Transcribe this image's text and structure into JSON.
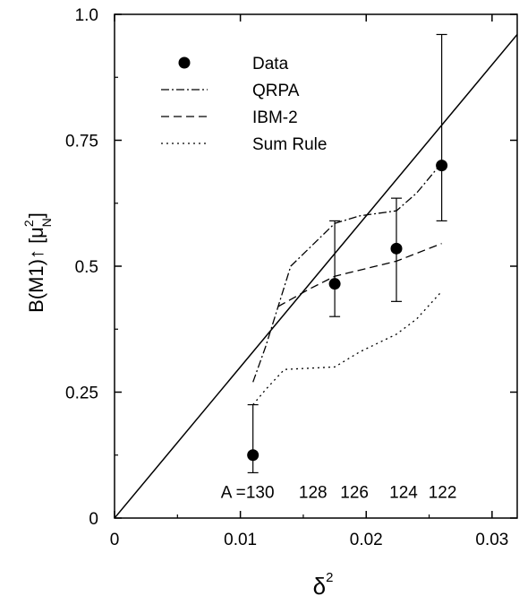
{
  "chart_data": {
    "type": "scatter",
    "xlabel": "δ",
    "xlabel_superscript": "2",
    "ylabel": "B(M1)↑ [μN²]",
    "ylabel_parts": {
      "main": "B(M1)",
      "arrow": "↑",
      "bracket_open": "[",
      "mu": "μ",
      "sup": "2",
      "sub": "N",
      "bracket_close": "]"
    },
    "xlim": [
      0,
      0.032
    ],
    "ylim": [
      0,
      1.0
    ],
    "xticks": [
      {
        "value": 0,
        "label": "0"
      },
      {
        "value": 0.01,
        "label": "0.01"
      },
      {
        "value": 0.02,
        "label": "0.02"
      },
      {
        "value": 0.03,
        "label": "0.03"
      }
    ],
    "yticks": [
      {
        "value": 0,
        "label": "0"
      },
      {
        "value": 0.25,
        "label": "0.25"
      },
      {
        "value": 0.5,
        "label": "0.5"
      },
      {
        "value": 0.75,
        "label": "0.75"
      },
      {
        "value": 1.0,
        "label": "1.0"
      }
    ],
    "legend_position": "top-left",
    "series": [
      {
        "name": "Data",
        "style": "markers",
        "points": [
          {
            "x": 0.011,
            "y": 0.125,
            "err_low": 0.09,
            "err_high": 0.225
          },
          {
            "x": 0.0175,
            "y": 0.465,
            "err_low": 0.4,
            "err_high": 0.59
          },
          {
            "x": 0.0224,
            "y": 0.535,
            "err_low": 0.43,
            "err_high": 0.635
          },
          {
            "x": 0.026,
            "y": 0.7,
            "err_low": 0.59,
            "err_high": 0.96
          }
        ]
      },
      {
        "name": "QRPA",
        "style": "dashdot",
        "points": [
          {
            "x": 0.011,
            "y": 0.27
          },
          {
            "x": 0.012,
            "y": 0.34
          },
          {
            "x": 0.014,
            "y": 0.5
          },
          {
            "x": 0.0175,
            "y": 0.585
          },
          {
            "x": 0.0195,
            "y": 0.6
          },
          {
            "x": 0.0224,
            "y": 0.61
          },
          {
            "x": 0.024,
            "y": 0.645
          },
          {
            "x": 0.026,
            "y": 0.705
          }
        ]
      },
      {
        "name": "IBM-2",
        "style": "dashed",
        "points": [
          {
            "x": 0.013,
            "y": 0.42
          },
          {
            "x": 0.0155,
            "y": 0.455
          },
          {
            "x": 0.0175,
            "y": 0.48
          },
          {
            "x": 0.0224,
            "y": 0.51
          },
          {
            "x": 0.026,
            "y": 0.545
          }
        ]
      },
      {
        "name": "Sum Rule",
        "style": "dotted",
        "points": [
          {
            "x": 0.011,
            "y": 0.225
          },
          {
            "x": 0.012,
            "y": 0.255
          },
          {
            "x": 0.0135,
            "y": 0.295
          },
          {
            "x": 0.0175,
            "y": 0.3
          },
          {
            "x": 0.0195,
            "y": 0.33
          },
          {
            "x": 0.0224,
            "y": 0.365
          },
          {
            "x": 0.024,
            "y": 0.395
          },
          {
            "x": 0.026,
            "y": 0.45
          }
        ]
      },
      {
        "name": "",
        "style": "solid",
        "points": [
          {
            "x": 0,
            "y": 0
          },
          {
            "x": 0.032,
            "y": 0.96
          }
        ]
      }
    ],
    "mass_labels": {
      "prefix": "A =",
      "items": [
        {
          "x": 0.011,
          "label": "130"
        },
        {
          "x": 0.0152,
          "label": "128"
        },
        {
          "x": 0.0185,
          "label": "126"
        },
        {
          "x": 0.0224,
          "label": "124"
        },
        {
          "x": 0.0255,
          "label": "122"
        }
      ],
      "y": 0.04
    }
  }
}
